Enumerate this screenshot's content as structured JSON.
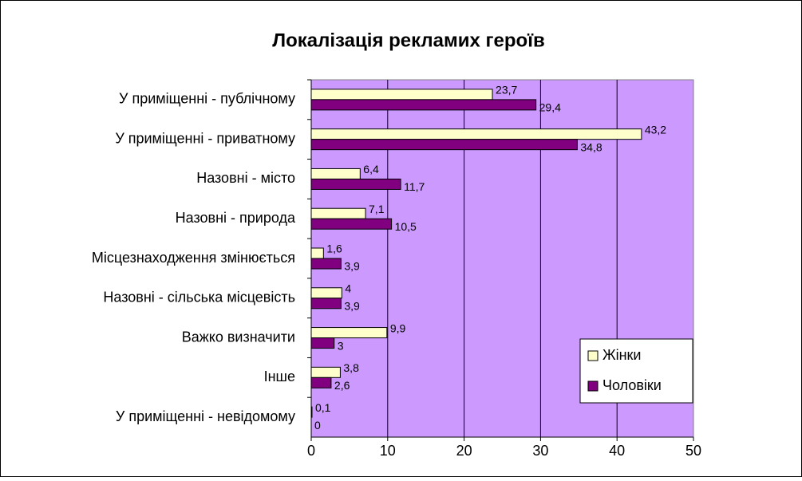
{
  "chart_data": {
    "type": "barh",
    "title": "Локалізація рекламих героїв",
    "categories": [
      "У приміщенні - публічному",
      "У приміщенні - приватному",
      "Назовні - місто",
      "Назовні - природа",
      "Місцезнаходження змінюється",
      "Назовні - сільська місцевість",
      "Важко визначити",
      "Інше",
      "У приміщенні - невідомому"
    ],
    "series": [
      {
        "name": "Жінки",
        "color": "#ffffcc",
        "values": [
          23.7,
          43.2,
          6.4,
          7.1,
          1.6,
          4,
          9.9,
          3.8,
          0.1
        ],
        "value_labels": [
          "23,7",
          "43,2",
          "6,4",
          "7,1",
          "1,6",
          "4",
          "9,9",
          "3,8",
          "0,1"
        ]
      },
      {
        "name": "Чоловіки",
        "color": "#800080",
        "values": [
          29.4,
          34.8,
          11.7,
          10.5,
          3.9,
          3.9,
          3,
          2.6,
          0
        ],
        "value_labels": [
          "29,4",
          "34,8",
          "11,7",
          "10,5",
          "3,9",
          "3,9",
          "3",
          "2,6",
          "0"
        ]
      }
    ],
    "xlim": [
      0,
      50
    ],
    "xticks": [
      0,
      10,
      20,
      30,
      40,
      50
    ],
    "grid": true,
    "legend": "lower right",
    "plot_background": "#cc99ff"
  }
}
